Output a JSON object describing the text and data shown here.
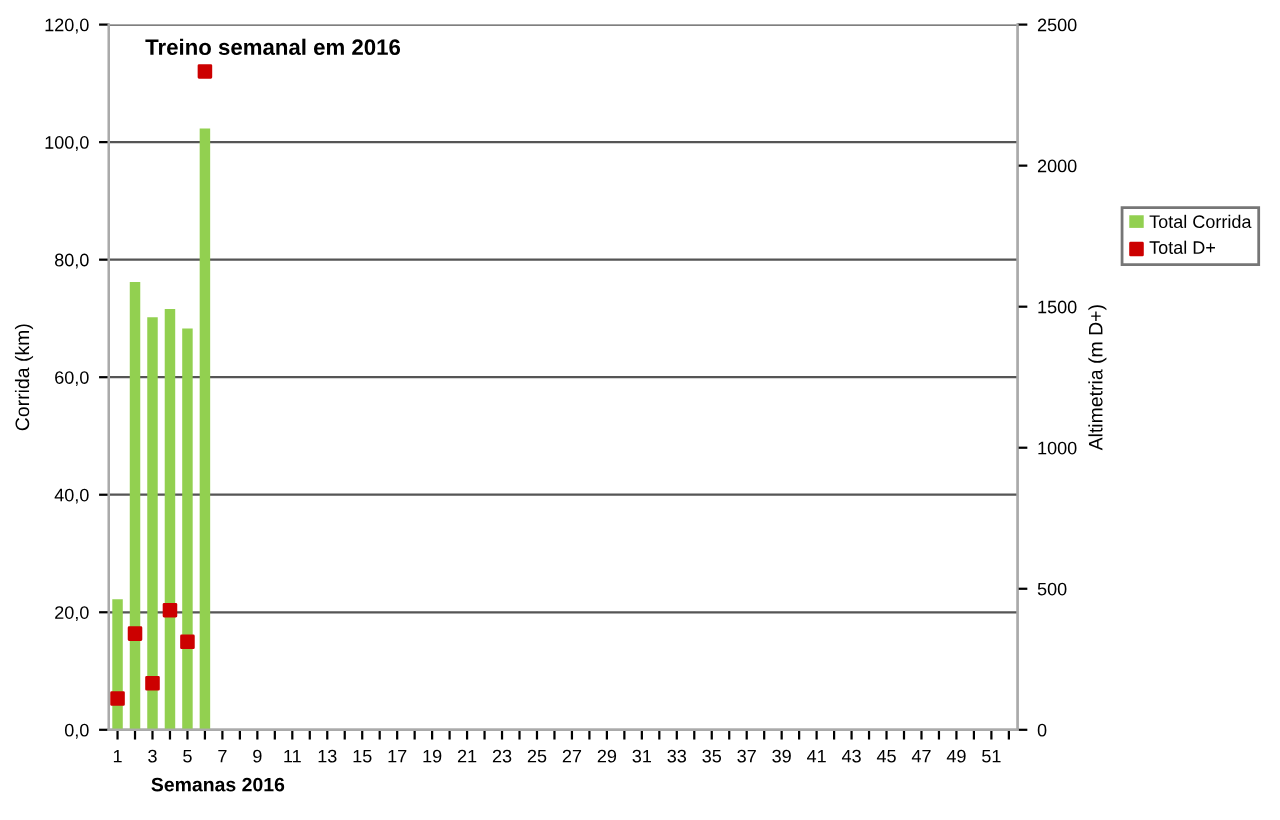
{
  "chart_data": {
    "type": "bar",
    "title": "Treino semanal em 2016",
    "xlabel": "Semanas 2016",
    "ylabel": "Corrida (km)",
    "y2label": "Altimetria (m D+)",
    "categories": [
      "1",
      null,
      "3",
      null,
      "5",
      null,
      "7",
      null,
      "9",
      null,
      "11",
      null,
      "13",
      null,
      "15",
      null,
      "17",
      null,
      "19",
      null,
      "21",
      null,
      "23",
      null,
      "25",
      null,
      "27",
      null,
      "29",
      null,
      "31",
      null,
      "33",
      null,
      "35",
      null,
      "37",
      null,
      "39",
      null,
      "41",
      null,
      "43",
      null,
      "45",
      null,
      "47",
      null,
      "49",
      null,
      "51",
      null
    ],
    "series": [
      {
        "name": "Total Corrida",
        "color": "#92d050",
        "values": [
          22.2,
          76.2,
          70.2,
          71.6,
          68.3,
          102.3,
          null,
          null,
          null,
          null,
          null,
          null,
          null,
          null,
          null,
          null,
          null,
          null,
          null,
          null,
          null,
          null,
          null,
          null,
          null,
          null,
          null,
          null,
          null,
          null,
          null,
          null,
          null,
          null,
          null,
          null,
          null,
          null,
          null,
          null,
          null,
          null,
          null,
          null,
          null,
          null,
          null,
          null,
          null,
          null,
          null,
          null
        ]
      },
      {
        "name": "Total D+",
        "type": "scatter",
        "axis": "y2",
        "color": "#cc0000",
        "marker": "square",
        "values": [
          111,
          341,
          165,
          424,
          312,
          2334,
          null,
          null,
          null,
          null,
          null,
          null,
          null,
          null,
          null,
          null,
          null,
          null,
          null,
          null,
          null,
          null,
          null,
          null,
          null,
          null,
          null,
          null,
          null,
          null,
          null,
          null,
          null,
          null,
          null,
          null,
          null,
          null,
          null,
          null,
          null,
          null,
          null,
          null,
          null,
          null,
          null,
          null,
          null,
          null,
          null,
          null
        ]
      }
    ],
    "ylim": [
      0,
      120
    ],
    "yticks": [
      {
        "value": 0,
        "label": "0,0"
      },
      {
        "value": 20,
        "label": "20,0"
      },
      {
        "value": 40,
        "label": "40,0"
      },
      {
        "value": 60,
        "label": "60,0"
      },
      {
        "value": 80,
        "label": "80,0"
      },
      {
        "value": 100,
        "label": "100,0"
      },
      {
        "value": 120,
        "label": "120,0"
      }
    ],
    "y2lim": [
      0,
      2500
    ],
    "y2ticks": [
      0,
      500,
      1000,
      1500,
      2000,
      2500
    ],
    "grid": "y",
    "legend": "right"
  }
}
